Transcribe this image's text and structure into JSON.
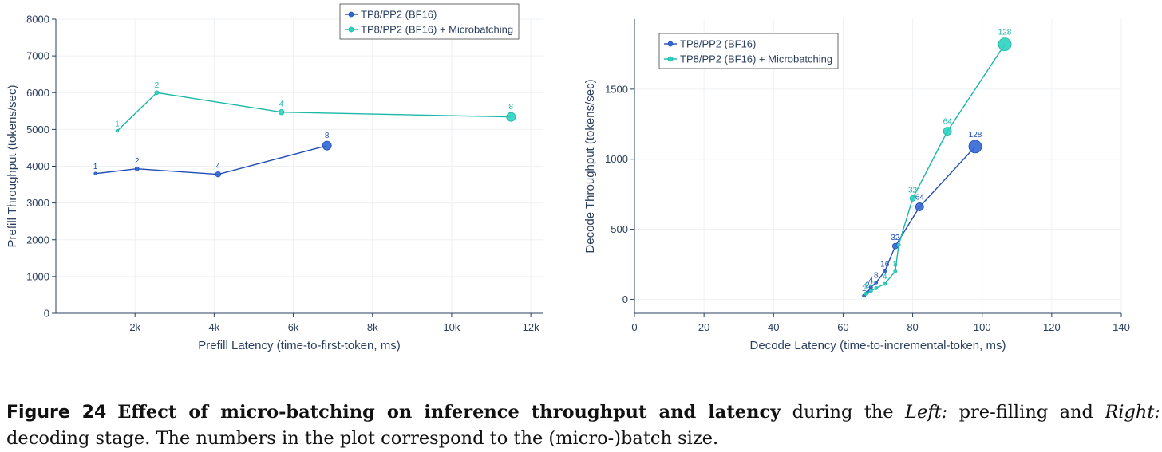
{
  "caption": {
    "label": "Figure 24",
    "bold": "Effect of micro-batching on inference throughput and latency",
    "text1": " during the ",
    "left_word": "Left:",
    "text2": " pre-filling and ",
    "right_word": "Right:",
    "text3": " decoding stage. The numbers in the plot correspond to the (micro-)batch size."
  },
  "colors": {
    "series_a": "#3366d6",
    "series_a_line": "#1f4fb4",
    "series_b": "#2ed1c0",
    "series_b_line": "#1ab8a8",
    "axis": "#2a3f5f",
    "grid": "#eef0f4"
  },
  "chart_data": [
    {
      "type": "scatter",
      "mode": "lines+markers+text",
      "xlabel": "Prefill Latency (time-to-first-token, ms)",
      "ylabel": "Prefill Throughput (tokens/sec)",
      "xlim": [
        0,
        12300
      ],
      "ylim": [
        0,
        8000
      ],
      "xticks": [
        2000,
        4000,
        6000,
        8000,
        10000,
        12000
      ],
      "xtick_labels": [
        "2k",
        "4k",
        "6k",
        "8k",
        "10k",
        "12k"
      ],
      "yticks": [
        0,
        1000,
        2000,
        3000,
        4000,
        5000,
        6000,
        7000,
        8000
      ],
      "ytick_labels": [
        "0",
        "1000",
        "2000",
        "3000",
        "4000",
        "5000",
        "6000",
        "7000",
        "8000"
      ],
      "legend_position": "top-right",
      "series": [
        {
          "name": "TP8/PP2 (BF16)",
          "x": [
            1000,
            2050,
            4100,
            6850
          ],
          "y": [
            3800,
            3930,
            3780,
            4560
          ],
          "labels": [
            "1",
            "2",
            "4",
            "8"
          ]
        },
        {
          "name": "TP8/PP2 (BF16) + Microbatching",
          "x": [
            1550,
            2550,
            5700,
            11500
          ],
          "y": [
            4960,
            6000,
            5470,
            5340
          ],
          "labels": [
            "1",
            "2",
            "4",
            "8"
          ]
        }
      ]
    },
    {
      "type": "scatter",
      "mode": "lines+markers+text",
      "xlabel": "Decode Latency (time-to-incremental-token, ms)",
      "ylabel": "Decode Throughput (tokens/sec)",
      "xlim": [
        0,
        140
      ],
      "ylim": [
        -100,
        2000
      ],
      "xticks": [
        0,
        20,
        40,
        60,
        80,
        100,
        120,
        140
      ],
      "xtick_labels": [
        "0",
        "20",
        "40",
        "60",
        "80",
        "100",
        "120",
        "140"
      ],
      "yticks": [
        0,
        500,
        1000,
        1500
      ],
      "ytick_labels": [
        "0",
        "500",
        "1000",
        "1500"
      ],
      "legend_position": "top-left",
      "series": [
        {
          "name": "TP8/PP2 (BF16)",
          "x": [
            66,
            67,
            68,
            69.5,
            72,
            75,
            82,
            98
          ],
          "y": [
            25,
            50,
            85,
            120,
            200,
            380,
            660,
            1090
          ],
          "labels": [
            "1",
            "2",
            "4",
            "8",
            "16",
            "32",
            "64",
            "128"
          ]
        },
        {
          "name": "TP8/PP2 (BF16) + Microbatching",
          "x": [
            66.5,
            68,
            69.5,
            72,
            75,
            76,
            80,
            90,
            106.5
          ],
          "y": [
            40,
            60,
            80,
            110,
            200,
            390,
            720,
            1200,
            1820
          ],
          "labels": [
            "1",
            "2",
            "",
            "4",
            "8",
            "",
            "32",
            "64",
            "128"
          ]
        }
      ]
    }
  ]
}
